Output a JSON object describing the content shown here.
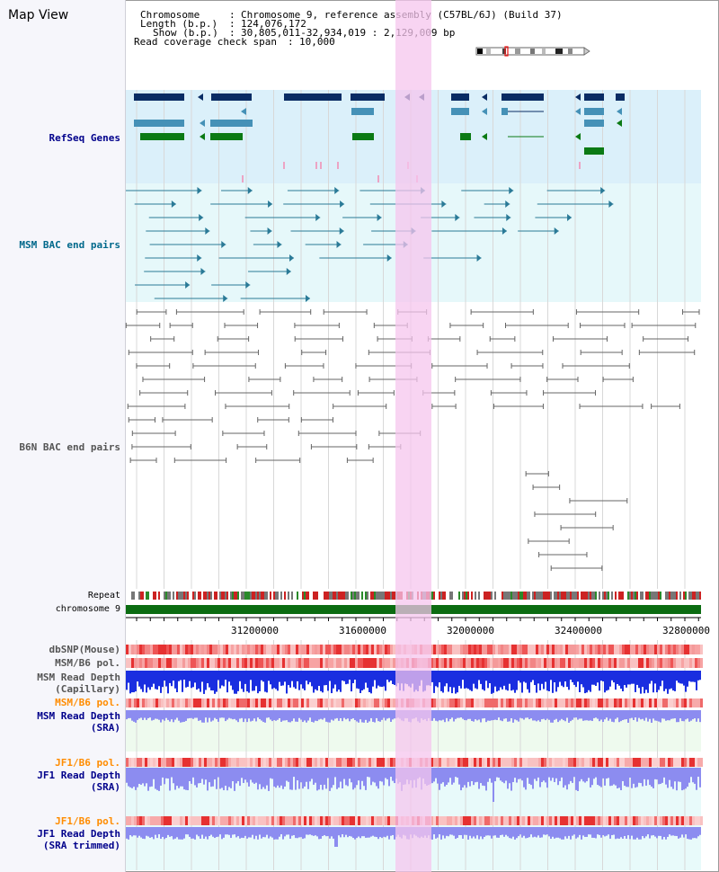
{
  "title": "Map View",
  "header": {
    "chromosome_key": "Chromosome",
    "chromosome_value": "Chromosome 9, reference assembly (C57BL/6J) (Build 37)",
    "length_key": "Length (b.p.)",
    "length_value": "124,076,172",
    "show_key": "Show (b.p.)",
    "show_value": "30,805,011-32,934,019 : 2,129,009 bp",
    "coverage_key": "Read coverage check span",
    "coverage_value": "10,000"
  },
  "tracks": {
    "refseq": "RefSeq Genes",
    "msm_bac": "MSM BAC end pairs",
    "b6n_bac": "B6N BAC end pairs",
    "repeat": "Repeat",
    "chromosome": "chromosome 9",
    "dbsnp": "dbSNP(Mouse)",
    "msm_b6_pol_1": "MSM/B6 pol.",
    "msm_depth_cap_1": "MSM Read Depth",
    "msm_depth_cap_2": "(Capillary)",
    "msm_b6_pol_2": "MSM/B6 pol.",
    "msm_depth_sra_1": "MSM Read Depth",
    "msm_depth_sra_2": "(SRA)",
    "jf1_b6_pol_1": "JF1/B6 pol.",
    "jf1_depth_1": "JF1 Read Depth",
    "jf1_depth_2": "(SRA)",
    "jf1_b6_pol_2": "JF1/B6 pol.",
    "jf1_trim_1": "JF1 Read Depth",
    "jf1_trim_2": "(SRA trimmed)"
  },
  "axis": {
    "ticks": [
      "31200000",
      "31600000",
      "32000000",
      "32400000",
      "32800000"
    ]
  },
  "colors": {
    "refseq_bg": "#dbf0fa",
    "bac_bg": "#e6f8fa",
    "highlight": "#f6c6ee",
    "gene_dark": "#0a2c64",
    "gene_mid": "#4591b7",
    "gene_green": "#0b7a14",
    "msm_line": "#2a7a97",
    "b6n_line": "#666666",
    "chromosome": "#0b6c11",
    "snp_red": "#e63131",
    "depth_blue": "#1a2ee0",
    "depth_light": "#8c8cf0",
    "label_blue": "#00008b",
    "label_orange": "#ff8c00",
    "label_teal": "#00688b",
    "label_gray": "#555555"
  }
}
